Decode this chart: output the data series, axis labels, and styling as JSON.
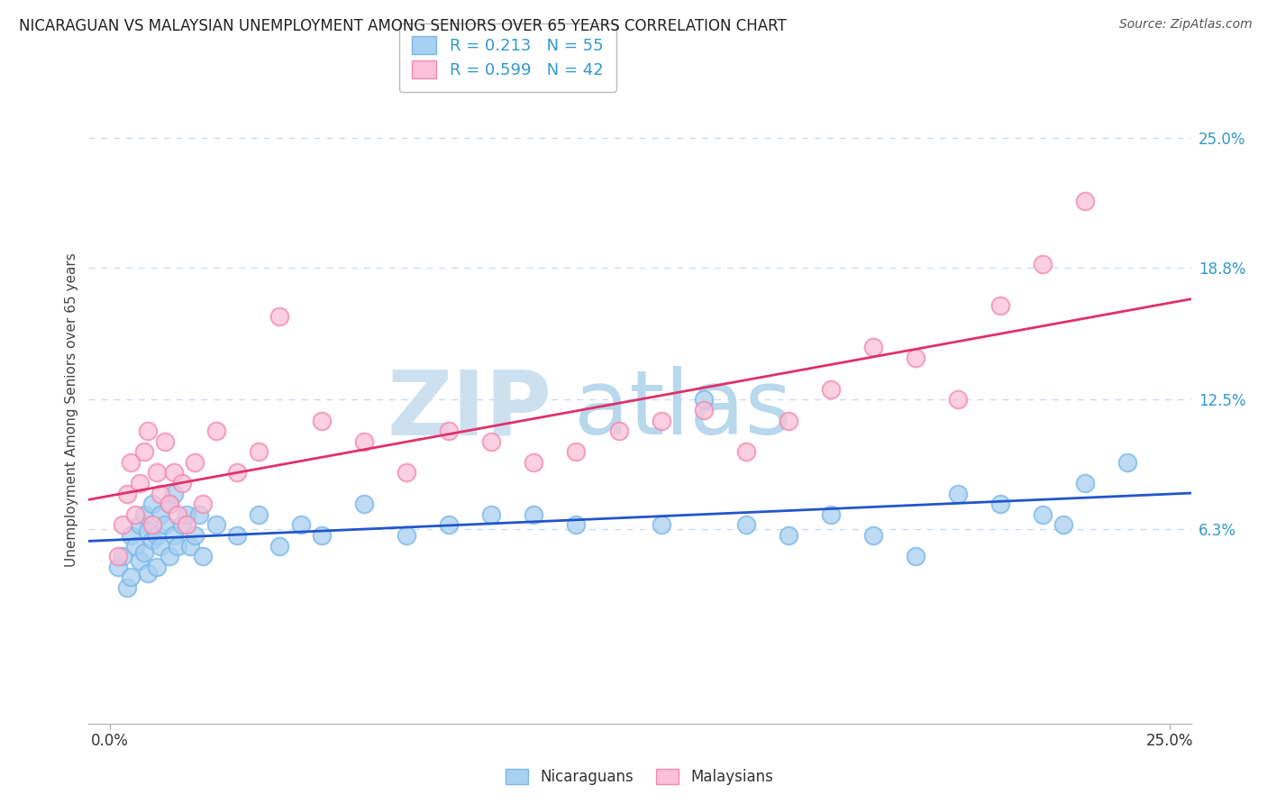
{
  "title": "NICARAGUAN VS MALAYSIAN UNEMPLOYMENT AMONG SENIORS OVER 65 YEARS CORRELATION CHART",
  "source": "Source: ZipAtlas.com",
  "ylabel": "Unemployment Among Seniors over 65 years",
  "xlabel_nicaraguans": "Nicaraguans",
  "xlabel_malaysians": "Malaysians",
  "xlim": [
    -0.5,
    25.5
  ],
  "ylim": [
    -3.0,
    27.0
  ],
  "ytick_vals": [
    6.3,
    12.5,
    18.8,
    25.0
  ],
  "ytick_labels": [
    "6.3%",
    "12.5%",
    "18.8%",
    "25.0%"
  ],
  "xtick_vals": [
    0.0,
    25.0
  ],
  "xtick_labels": [
    "0.0%",
    "25.0%"
  ],
  "legend_r1": "R = 0.213",
  "legend_n1": "N = 55",
  "legend_r2": "R = 0.599",
  "legend_n2": "N = 42",
  "blue_color": "#a8d0f0",
  "blue_edge_color": "#7ab8e8",
  "pink_color": "#fcc0d8",
  "pink_edge_color": "#f08ab0",
  "blue_line_color": "#2255cc",
  "pink_line_color": "#e0306a",
  "watermark_zip_color": "#cce0f0",
  "watermark_atlas_color": "#b8d8ec",
  "background_color": "#ffffff",
  "grid_color": "#ccddee",
  "title_color": "#222222",
  "source_color": "#555555",
  "axis_label_color": "#444444",
  "tick_label_color": "#3399cc",
  "blue_x": [
    0.2,
    0.3,
    0.4,
    0.5,
    0.5,
    0.6,
    0.7,
    0.7,
    0.8,
    0.8,
    0.9,
    0.9,
    1.0,
    1.0,
    1.1,
    1.1,
    1.2,
    1.2,
    1.3,
    1.4,
    1.4,
    1.5,
    1.5,
    1.6,
    1.7,
    1.8,
    1.9,
    2.0,
    2.1,
    2.2,
    2.5,
    3.0,
    3.5,
    4.0,
    4.5,
    5.0,
    6.0,
    7.0,
    8.0,
    9.0,
    10.0,
    11.0,
    13.0,
    14.0,
    15.0,
    16.0,
    17.0,
    18.0,
    19.0,
    20.0,
    21.0,
    22.0,
    22.5,
    23.0,
    24.0
  ],
  "blue_y": [
    4.5,
    5.0,
    3.5,
    6.0,
    4.0,
    5.5,
    6.5,
    4.8,
    5.2,
    7.0,
    4.2,
    6.2,
    5.8,
    7.5,
    6.0,
    4.5,
    5.5,
    7.0,
    6.5,
    5.0,
    7.5,
    6.0,
    8.0,
    5.5,
    6.5,
    7.0,
    5.5,
    6.0,
    7.0,
    5.0,
    6.5,
    6.0,
    7.0,
    5.5,
    6.5,
    6.0,
    7.5,
    6.0,
    6.5,
    7.0,
    7.0,
    6.5,
    6.5,
    12.5,
    6.5,
    6.0,
    7.0,
    6.0,
    5.0,
    8.0,
    7.5,
    7.0,
    6.5,
    8.5,
    9.5
  ],
  "pink_x": [
    0.2,
    0.3,
    0.4,
    0.5,
    0.6,
    0.7,
    0.8,
    0.9,
    1.0,
    1.1,
    1.2,
    1.3,
    1.4,
    1.5,
    1.6,
    1.7,
    1.8,
    2.0,
    2.2,
    2.5,
    3.0,
    3.5,
    4.0,
    5.0,
    6.0,
    7.0,
    8.0,
    9.0,
    10.0,
    11.0,
    12.0,
    13.0,
    14.0,
    15.0,
    16.0,
    17.0,
    18.0,
    19.0,
    20.0,
    21.0,
    22.0,
    23.0
  ],
  "pink_y": [
    5.0,
    6.5,
    8.0,
    9.5,
    7.0,
    8.5,
    10.0,
    11.0,
    6.5,
    9.0,
    8.0,
    10.5,
    7.5,
    9.0,
    7.0,
    8.5,
    6.5,
    9.5,
    7.5,
    11.0,
    9.0,
    10.0,
    16.5,
    11.5,
    10.5,
    9.0,
    11.0,
    10.5,
    9.5,
    10.0,
    11.0,
    11.5,
    12.0,
    10.0,
    11.5,
    13.0,
    15.0,
    14.5,
    12.5,
    17.0,
    19.0,
    22.0
  ]
}
